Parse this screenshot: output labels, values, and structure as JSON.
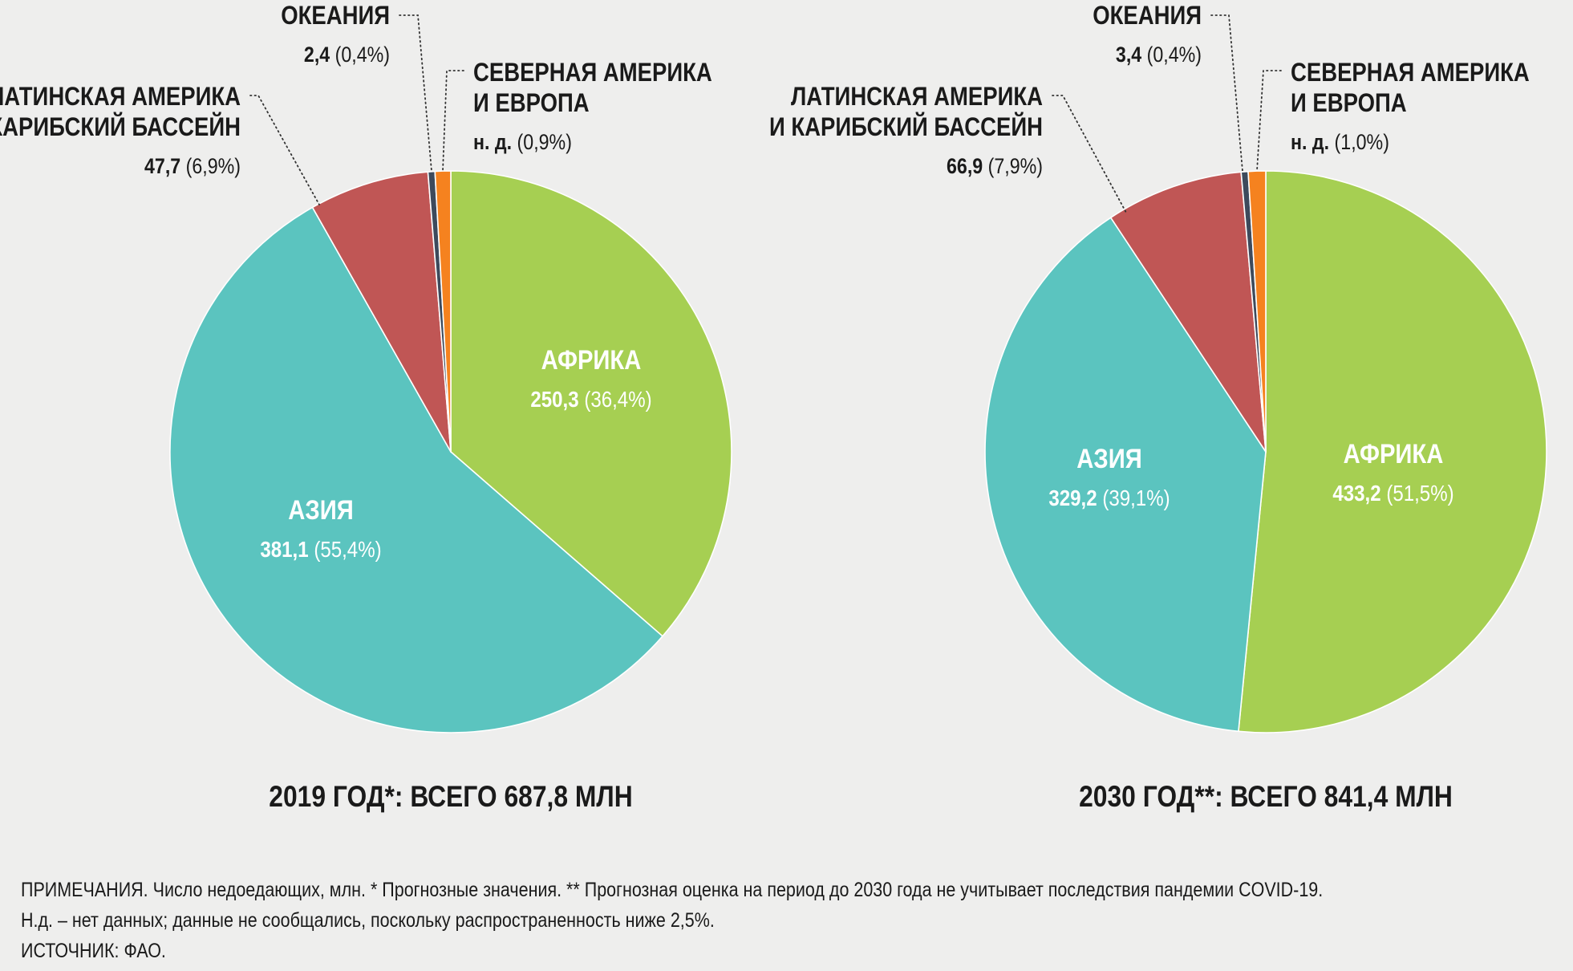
{
  "chart_data": [
    {
      "type": "pie",
      "title": "2019 ГОД*: ВСЕГО 687,8 МЛН",
      "unit": "млн",
      "slices": [
        {
          "name": "АФРИКА",
          "value": 250.3,
          "value_label": "250,3",
          "percent": 36.4,
          "percent_label": "(36,4%)",
          "color": "#a6cf52"
        },
        {
          "name": "АЗИЯ",
          "value": 381.1,
          "value_label": "381,1",
          "percent": 55.4,
          "percent_label": "(55,4%)",
          "color": "#5bc4bf"
        },
        {
          "name": "ЛАТИНСКАЯ АМЕРИКА И КАРИБСКИЙ БАССЕЙН",
          "name_lines": [
            "ЛАТИНСКАЯ АМЕРИКА",
            "И КАРИБСКИЙ БАССЕЙН"
          ],
          "value": 47.7,
          "value_label": "47,7",
          "percent": 6.9,
          "percent_label": "(6,9%)",
          "color": "#c05655"
        },
        {
          "name": "ОКЕАНИЯ",
          "name_lines": [
            "ОКЕАНИЯ"
          ],
          "value": 2.4,
          "value_label": "2,4",
          "percent": 0.4,
          "percent_label": "(0,4%)",
          "color": "#3d4a5c"
        },
        {
          "name": "СЕВЕРНАЯ АМЕРИКА И ЕВРОПА",
          "name_lines": [
            "СЕВЕРНАЯ АМЕРИКА",
            "И ЕВРОПА"
          ],
          "value": null,
          "value_label": "н. д.",
          "percent": 0.9,
          "percent_label": "(0,9%)",
          "color": "#f5821f"
        }
      ]
    },
    {
      "type": "pie",
      "title": "2030 ГОД**: ВСЕГО 841,4 МЛН",
      "unit": "млн",
      "slices": [
        {
          "name": "АФРИКА",
          "value": 433.2,
          "value_label": "433,2",
          "percent": 51.5,
          "percent_label": "(51,5%)",
          "color": "#a6cf52"
        },
        {
          "name": "АЗИЯ",
          "value": 329.2,
          "value_label": "329,2",
          "percent": 39.1,
          "percent_label": "(39,1%)",
          "color": "#5bc4bf"
        },
        {
          "name": "ЛАТИНСКАЯ АМЕРИКА И КАРИБСКИЙ БАССЕЙН",
          "name_lines": [
            "ЛАТИНСКАЯ АМЕРИКА",
            "И КАРИБСКИЙ БАССЕЙН"
          ],
          "value": 66.9,
          "value_label": "66,9",
          "percent": 7.9,
          "percent_label": "(7,9%)",
          "color": "#c05655"
        },
        {
          "name": "ОКЕАНИЯ",
          "name_lines": [
            "ОКЕАНИЯ"
          ],
          "value": 3.4,
          "value_label": "3,4",
          "percent": 0.4,
          "percent_label": "(0,4%)",
          "color": "#3d4a5c"
        },
        {
          "name": "СЕВЕРНАЯ АМЕРИКА И ЕВРОПА",
          "name_lines": [
            "СЕВЕРНАЯ АМЕРИКА",
            "И ЕВРОПА"
          ],
          "value": null,
          "value_label": "н. д.",
          "percent": 1.0,
          "percent_label": "(1,0%)",
          "color": "#f5821f"
        }
      ]
    }
  ],
  "notes": {
    "line1": "ПРИМЕЧАНИЯ. Число недоедающих, млн. * Прогнозные значения. ** Прогнозная оценка на период до 2030 года не учитывает последствия пандемии COVID-19.",
    "line2": "Н.д. – нет данных; данные не сообщались, поскольку распространенность ниже 2,5%.",
    "line3": "ИСТОЧНИК: ФАО."
  }
}
